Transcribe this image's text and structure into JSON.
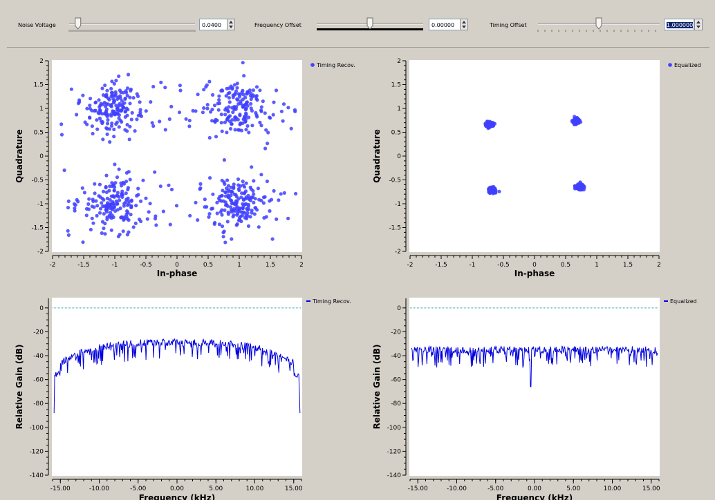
{
  "toolbar": {
    "noise": {
      "label": "Noise Voltage",
      "value": "0.0400",
      "level": 0.07
    },
    "freq": {
      "label": "Frequency Offset",
      "value": "0.00000",
      "level": 0.5
    },
    "timing": {
      "label": "Timing Offset",
      "value": "1.000000",
      "level": 0.5
    }
  },
  "chart_data": [
    {
      "type": "scatter",
      "title": "",
      "xlabel": "In-phase",
      "ylabel": "Quadrature",
      "xlim": [
        -2,
        2
      ],
      "ylim": [
        -2,
        2
      ],
      "xticks": [
        "-2",
        "-1.5",
        "-1",
        "-0.5",
        "0",
        "0.5",
        "1",
        "1.5",
        "2"
      ],
      "yticks": [
        "2",
        "1.5",
        "1",
        "0.5",
        "0",
        "-0.5",
        "-1",
        "-1.5",
        "-2"
      ],
      "legend": "Timing Recov.",
      "color": "#4040ff",
      "clusters": [
        {
          "x": -1.0,
          "y": 1.0
        },
        {
          "x": 1.0,
          "y": 1.0
        },
        {
          "x": -1.0,
          "y": -1.0
        },
        {
          "x": 1.0,
          "y": -1.0
        }
      ],
      "spread": 0.35
    },
    {
      "type": "scatter",
      "title": "",
      "xlabel": "In-phase",
      "ylabel": "Quadrature",
      "xlim": [
        -2,
        2
      ],
      "ylim": [
        -2,
        2
      ],
      "xticks": [
        "-2",
        "-1.5",
        "-1",
        "-0.5",
        "0",
        "0.5",
        "1",
        "1.5",
        "2"
      ],
      "yticks": [
        "2",
        "1.5",
        "1",
        "0.5",
        "0",
        "-0.5",
        "-1",
        "-1.5",
        "-2"
      ],
      "legend": "Equalized",
      "color": "#4040ff",
      "clusters": [
        {
          "x": -0.72,
          "y": 0.67
        },
        {
          "x": 0.67,
          "y": 0.73
        },
        {
          "x": -0.68,
          "y": -0.72
        },
        {
          "x": 0.73,
          "y": -0.65
        }
      ],
      "spread": 0.03
    },
    {
      "type": "line",
      "title": "",
      "xlabel": "Frequency (kHz)",
      "ylabel": "Relative Gain (dB)",
      "xlim": [
        -16,
        16
      ],
      "ylim": [
        -140,
        8
      ],
      "xticks": [
        "-15.00",
        "-10.00",
        "-5.00",
        "0.00",
        "5.00",
        "10.00",
        "15.00"
      ],
      "xtick_values": [
        -15,
        -10,
        -5,
        0,
        5,
        10,
        15
      ],
      "yticks": [
        "0",
        "-20",
        "-40",
        "-60",
        "-80",
        "-100",
        "-120",
        "-140"
      ],
      "ytick_values": [
        0,
        -20,
        -40,
        -60,
        -80,
        -100,
        -120,
        -140
      ],
      "legend": "Timing Recov.",
      "color": "#0000dd",
      "reference_line": 0,
      "shape": "arched",
      "approx_peak_db": -30,
      "approx_edge_db": -60
    },
    {
      "type": "line",
      "title": "",
      "xlabel": "Frequency (kHz)",
      "ylabel": "Relative Gain (dB)",
      "xlim": [
        -16,
        16
      ],
      "ylim": [
        -140,
        8
      ],
      "xticks": [
        "-15.00",
        "-10.00",
        "-5.00",
        "0.00",
        "5.00",
        "10.00",
        "15.00"
      ],
      "xtick_values": [
        -15,
        -10,
        -5,
        0,
        5,
        10,
        15
      ],
      "yticks": [
        "0",
        "-20",
        "-40",
        "-60",
        "-80",
        "-100",
        "-120",
        "-140"
      ],
      "ytick_values": [
        0,
        -20,
        -40,
        -60,
        -80,
        -100,
        -120,
        -140
      ],
      "legend": "Equalized",
      "color": "#0000dd",
      "reference_line": 0,
      "shape": "flat",
      "approx_level_db": -36
    }
  ]
}
